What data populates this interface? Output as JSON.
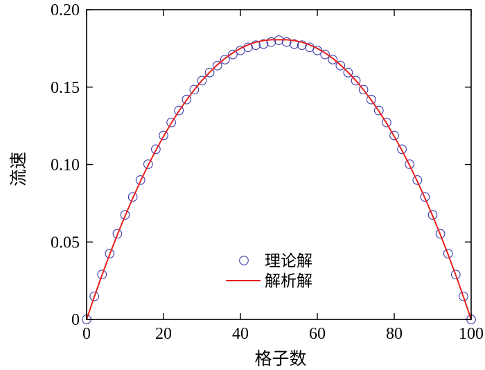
{
  "chart_data": {
    "type": "scatter",
    "xlabel": "格子数",
    "ylabel": "流速",
    "xlim": [
      0,
      100
    ],
    "ylim": [
      0,
      0.2
    ],
    "xticks": [
      {
        "value": 0,
        "label": "0"
      },
      {
        "value": 20,
        "label": "20"
      },
      {
        "value": 40,
        "label": "40"
      },
      {
        "value": 60,
        "label": "60"
      },
      {
        "value": 80,
        "label": "80"
      },
      {
        "value": 100,
        "label": "100"
      }
    ],
    "yticks": [
      {
        "value": 0,
        "label": "0"
      },
      {
        "value": 0.05,
        "label": "0.05"
      },
      {
        "value": 0.1,
        "label": "0.10"
      },
      {
        "value": 0.15,
        "label": "0.15"
      },
      {
        "value": 0.2,
        "label": "0.20"
      }
    ],
    "legend_position": "bottom-center",
    "grid": false,
    "series": [
      {
        "name": "理论解",
        "kind": "scatter",
        "marker": "open-circle",
        "color": "#3a3aa8",
        "x": [
          0,
          2,
          4,
          6,
          8,
          10,
          12,
          14,
          16,
          18,
          20,
          22,
          24,
          26,
          28,
          30,
          32,
          34,
          36,
          38,
          40,
          42,
          44,
          46,
          48,
          50,
          52,
          54,
          56,
          58,
          60,
          62,
          64,
          66,
          68,
          70,
          72,
          74,
          76,
          78,
          80,
          82,
          84,
          86,
          88,
          90,
          92,
          94,
          96,
          98,
          100
        ],
        "y": [
          0,
          0.0149,
          0.029,
          0.0425,
          0.0553,
          0.0675,
          0.0791,
          0.09,
          0.1002,
          0.1099,
          0.1188,
          0.1272,
          0.1349,
          0.142,
          0.1484,
          0.1542,
          0.1594,
          0.1639,
          0.1678,
          0.1711,
          0.1737,
          0.1757,
          0.1771,
          0.1778,
          0.1791,
          0.1803,
          0.1791,
          0.1778,
          0.1771,
          0.1757,
          0.1737,
          0.1711,
          0.1678,
          0.1639,
          0.1594,
          0.1542,
          0.1484,
          0.142,
          0.1349,
          0.1272,
          0.1188,
          0.1099,
          0.1002,
          0.09,
          0.0791,
          0.0675,
          0.0553,
          0.0425,
          0.029,
          0.0149,
          0
        ]
      },
      {
        "name": "解析解",
        "kind": "line",
        "color": "#e8201c",
        "x": [
          0,
          2,
          4,
          6,
          8,
          10,
          12,
          14,
          16,
          18,
          20,
          22,
          24,
          26,
          28,
          30,
          32,
          34,
          36,
          38,
          40,
          42,
          44,
          46,
          48,
          50,
          52,
          54,
          56,
          58,
          60,
          62,
          64,
          66,
          68,
          70,
          72,
          74,
          76,
          78,
          80,
          82,
          84,
          86,
          88,
          90,
          92,
          94,
          96,
          98,
          100
        ],
        "y": [
          0,
          0.0146,
          0.0286,
          0.042,
          0.0547,
          0.0668,
          0.0783,
          0.0892,
          0.0995,
          0.1092,
          0.1182,
          0.1267,
          0.1345,
          0.1417,
          0.1483,
          0.1543,
          0.1596,
          0.1644,
          0.1686,
          0.1721,
          0.175,
          0.1773,
          0.179,
          0.1801,
          0.1806,
          0.1806,
          0.1806,
          0.1801,
          0.179,
          0.1773,
          0.175,
          0.1721,
          0.1686,
          0.1644,
          0.1596,
          0.1543,
          0.1483,
          0.1417,
          0.1345,
          0.1267,
          0.1182,
          0.1092,
          0.0995,
          0.0892,
          0.0783,
          0.0668,
          0.0547,
          0.042,
          0.0286,
          0.0146,
          0
        ]
      }
    ]
  }
}
